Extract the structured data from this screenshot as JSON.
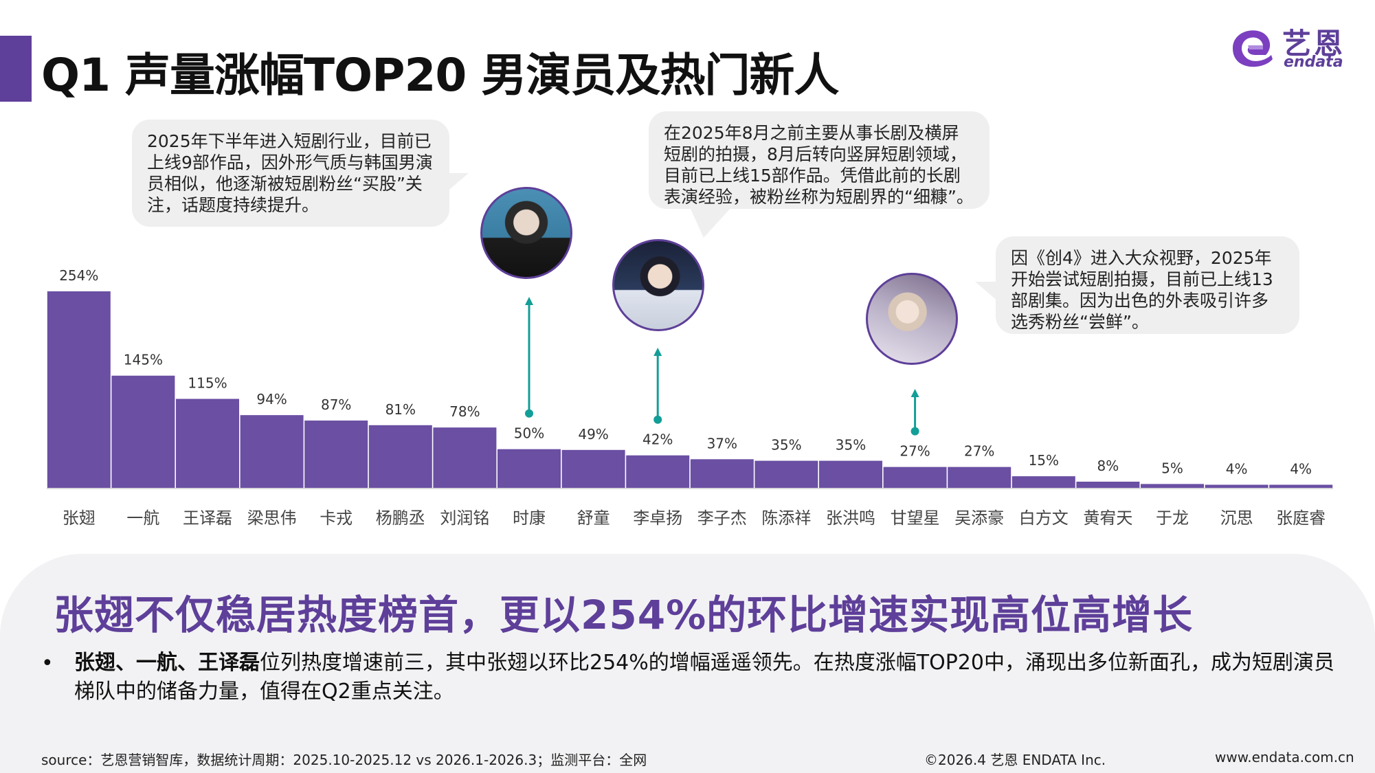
{
  "title": "Q1 声量涨幅TOP20 男演员及热门新人",
  "logo": {
    "cn": "艺恩",
    "en": "endata"
  },
  "callouts": [
    {
      "text": "2025年下半年进入短剧行业，目前已上线9部作品，因外形气质与韩国男演员相似，他逐渐被短剧粉丝“买股”关注，话题度持续提升。"
    },
    {
      "text": "在2025年8月之前主要从事长剧及横屏短剧的拍摄，8月后转向竖屏短剧领域，目前已上线15部作品。凭借此前的长剧表演经验，被粉丝称为短剧界的“细糠”。"
    },
    {
      "text": "因《创4》进入大众视野，2025年开始尝试短剧拍摄，目前已上线13部剧集。因为出色的外表吸引许多选秀粉丝“尝鲜”。"
    }
  ],
  "chart_data": {
    "type": "bar",
    "categories": [
      "张翅",
      "一航",
      "王译磊",
      "梁思伟",
      "卡戎",
      "杨鹏丞",
      "刘润铭",
      "时康",
      "舒童",
      "李卓扬",
      "李子杰",
      "陈添祥",
      "张洪鸣",
      "甘望星",
      "吴添豪",
      "白方文",
      "黄宥天",
      "于龙",
      "沉思",
      "张庭睿"
    ],
    "values": [
      254,
      145,
      115,
      94,
      87,
      81,
      78,
      50,
      49,
      42,
      37,
      35,
      35,
      27,
      27,
      15,
      8,
      5,
      4,
      4
    ],
    "value_labels": [
      "254%",
      "145%",
      "115%",
      "94%",
      "87%",
      "81%",
      "78%",
      "50%",
      "49%",
      "42%",
      "37%",
      "35%",
      "35%",
      "27%",
      "27%",
      "15%",
      "8%",
      "5%",
      "4%",
      "4%"
    ],
    "title": "",
    "xlabel": "",
    "ylabel": "",
    "ylim": [
      0,
      254
    ],
    "grid": false,
    "highlighted": [
      "时康",
      "李卓扬",
      "甘望星"
    ],
    "bar_color": "#6a4fa3",
    "arrow_color": "#139e98"
  },
  "headline": "张翅不仅稳居热度榜首，更以254%的环比增速实现高位高增长",
  "bullet": {
    "marker": "•",
    "bold": "张翅、一航、王译磊",
    "text": "位列热度增速前三，其中张翅以环比254%的增幅遥遥领先。在热度涨幅TOP20中，涌现出多位新面孔，成为短剧演员梯队中的储备力量，值得在Q2重点关注。"
  },
  "footer": {
    "source": "source：艺恩营销智库，数据统计周期：2025.10-2025.12 vs 2026.1-2026.3；监测平台：全网",
    "copyright": "©2026.4  艺恩 ENDATA Inc.",
    "website": "www.endata.com.cn"
  },
  "colors": {
    "accent": "#5e3f99",
    "bar": "#6a4fa3",
    "arrow": "#139e98",
    "panel": "#f2f2f4"
  }
}
